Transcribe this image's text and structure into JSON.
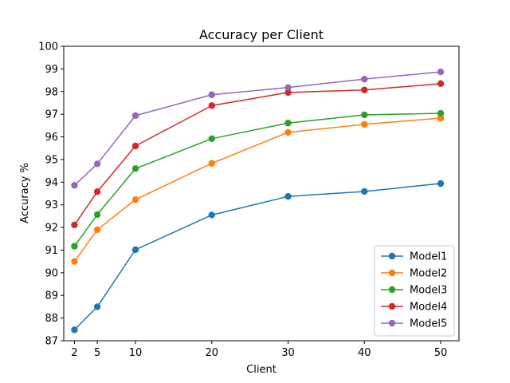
{
  "chart_data": {
    "type": "line",
    "title": "Accuracy per Client",
    "xlabel": "Client",
    "ylabel": "Accuracy %",
    "x": [
      2,
      5,
      10,
      20,
      30,
      40,
      50
    ],
    "x_ticks": [
      2,
      5,
      10,
      20,
      30,
      40,
      50
    ],
    "y_ticks": [
      87,
      88,
      89,
      90,
      91,
      92,
      93,
      94,
      95,
      96,
      97,
      98,
      99,
      100
    ],
    "xlim": [
      0.6,
      52.4
    ],
    "ylim": [
      87,
      100
    ],
    "grid": false,
    "legend_position": "lower-right",
    "series": [
      {
        "name": "Model1",
        "color": "#1f77b4",
        "values": [
          87.48,
          88.5,
          91.02,
          92.55,
          93.37,
          93.59,
          93.94
        ]
      },
      {
        "name": "Model2",
        "color": "#ff7f0e",
        "values": [
          90.5,
          91.9,
          93.23,
          94.83,
          96.2,
          96.55,
          96.83
        ]
      },
      {
        "name": "Model3",
        "color": "#2ca02c",
        "values": [
          91.17,
          92.57,
          94.6,
          95.92,
          96.61,
          96.97,
          97.04
        ]
      },
      {
        "name": "Model4",
        "color": "#d62728",
        "values": [
          92.11,
          93.58,
          95.6,
          97.38,
          97.96,
          98.07,
          98.35
        ]
      },
      {
        "name": "Model5",
        "color": "#9467bd",
        "values": [
          93.86,
          94.81,
          96.94,
          97.86,
          98.18,
          98.55,
          98.87
        ]
      }
    ]
  }
}
